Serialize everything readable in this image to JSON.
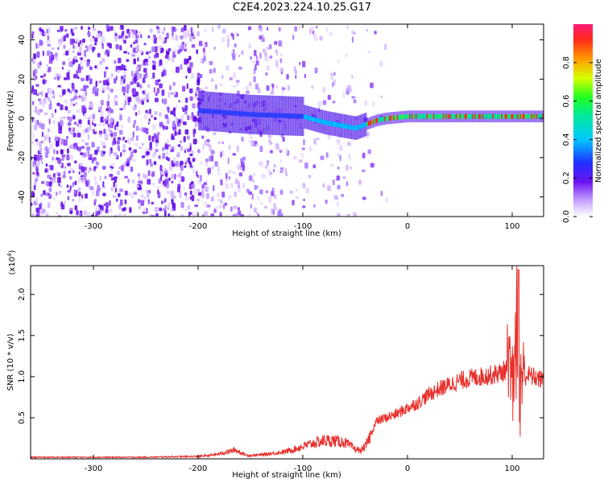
{
  "figure_title": "C2E4.2023.224.10.25.G17",
  "colors": {
    "snr_line": "#e8302c",
    "low_amp": "#7a1ff0",
    "frame": "#000000"
  },
  "chart_data": [
    {
      "type": "heatmap",
      "title": "",
      "xlabel": "Height of straight line (km)",
      "ylabel": "Frequency (Hz)",
      "xlim": [
        -360,
        130
      ],
      "ylim": [
        -50,
        48
      ],
      "xticks": [
        -300,
        -200,
        -100,
        0,
        100
      ],
      "xtick_labels": [
        "-300",
        "-200",
        "-100",
        "0",
        "100"
      ],
      "yticks": [
        -40,
        -20,
        0,
        20,
        40
      ],
      "ytick_labels": [
        "-40",
        "-20",
        "0",
        "20",
        "40"
      ],
      "colorbar": {
        "label": "Normalized spectral amplitude",
        "range": [
          0.0,
          1.0
        ],
        "ticks": [
          0.0,
          0.2,
          0.4,
          0.6,
          0.8
        ],
        "tick_labels": [
          "0.0",
          "0.2",
          "0.4",
          "0.6",
          "0.8"
        ],
        "colormap": "rainbow"
      },
      "ridge_centerline": [
        {
          "x": -200,
          "y": 4
        },
        {
          "x": -150,
          "y": 2
        },
        {
          "x": -100,
          "y": 1
        },
        {
          "x": -80,
          "y": -2
        },
        {
          "x": -60,
          "y": -4
        },
        {
          "x": -50,
          "y": -5
        },
        {
          "x": -40,
          "y": -3
        },
        {
          "x": -30,
          "y": -1
        },
        {
          "x": -20,
          "y": 0
        },
        {
          "x": 0,
          "y": 1
        },
        {
          "x": 20,
          "y": 1
        },
        {
          "x": 40,
          "y": 1
        },
        {
          "x": 60,
          "y": 1
        },
        {
          "x": 80,
          "y": 1
        },
        {
          "x": 100,
          "y": 1
        },
        {
          "x": 130,
          "y": 1
        }
      ]
    },
    {
      "type": "line",
      "title": "",
      "xlabel": "Height of straight line (km)",
      "ylabel": "SNR (10 * v/v)",
      "y_multiplier_label": "(x10",
      "y_multiplier_exp": "4",
      "xlim": [
        -360,
        130
      ],
      "ylim": [
        0,
        2.35
      ],
      "xticks": [
        -300,
        -200,
        -100,
        0,
        100
      ],
      "xtick_labels": [
        "-300",
        "-200",
        "-100",
        "0",
        "100"
      ],
      "yticks": [
        0.5,
        1.0,
        1.5,
        2.0
      ],
      "ytick_labels": [
        "0.5",
        "1.0",
        "1.5",
        "2.0"
      ],
      "series": [
        {
          "x": [
            -360,
            -300,
            -250,
            -200,
            -190,
            -180,
            -170,
            -165,
            -160,
            -155,
            -150,
            -140,
            -120,
            -110,
            -100,
            -90,
            -80,
            -70,
            -60,
            -50,
            -45,
            -40,
            -35,
            -30,
            -25,
            -20,
            -10,
            0,
            10,
            20,
            30,
            40,
            50,
            60,
            70,
            80,
            90,
            95,
            100,
            103,
            105,
            107,
            110,
            115,
            120,
            130
          ],
          "y": [
            0.02,
            0.02,
            0.02,
            0.03,
            0.04,
            0.06,
            0.09,
            0.11,
            0.08,
            0.05,
            0.04,
            0.05,
            0.08,
            0.11,
            0.15,
            0.19,
            0.22,
            0.22,
            0.2,
            0.12,
            0.1,
            0.15,
            0.3,
            0.45,
            0.48,
            0.5,
            0.55,
            0.62,
            0.68,
            0.78,
            0.85,
            0.9,
            0.95,
            0.98,
            1.0,
            1.02,
            1.05,
            1.1,
            0.9,
            1.2,
            1.7,
            0.8,
            0.98,
            1.02,
            1.0,
            0.95
          ]
        }
      ]
    }
  ]
}
